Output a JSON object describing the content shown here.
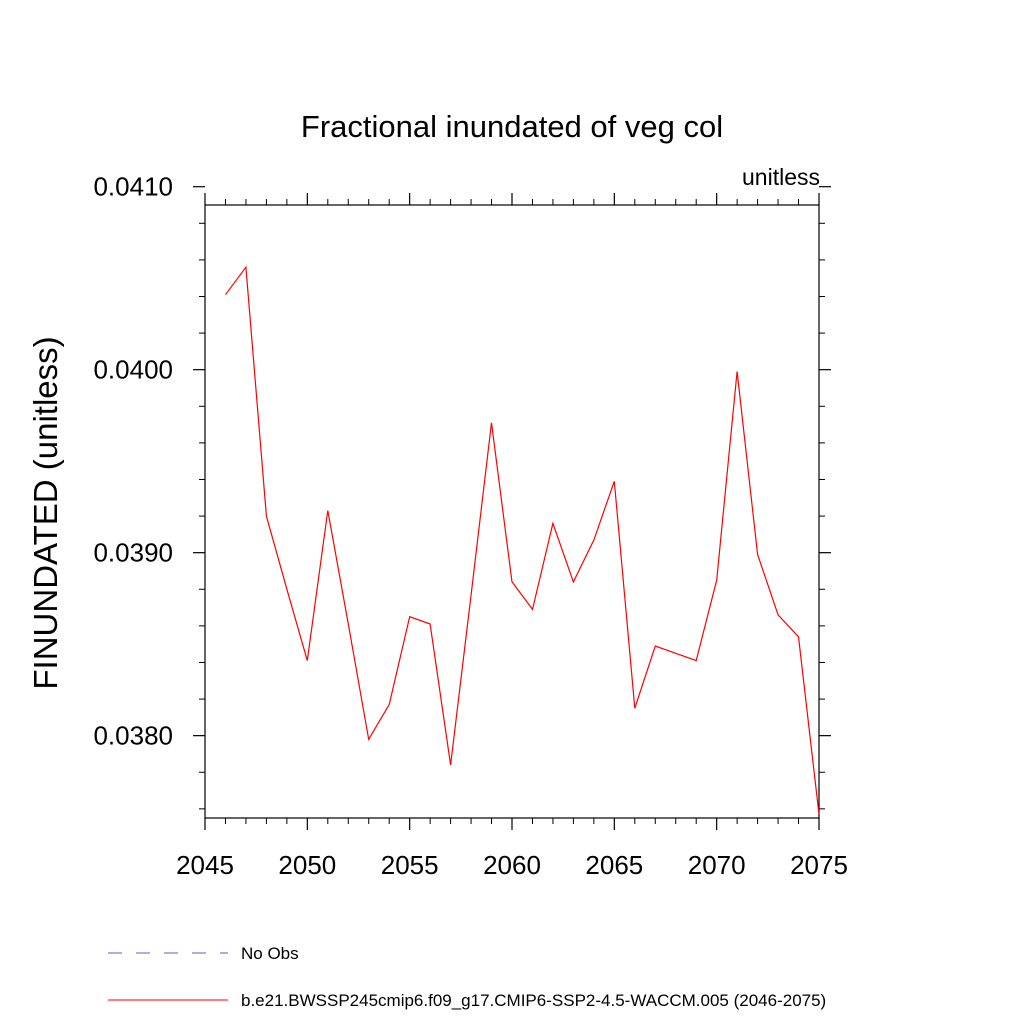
{
  "chart_data": {
    "type": "line",
    "title": "Fractional inundated of veg col",
    "units": "unitless",
    "xlabel": "",
    "ylabel": "FINUNDATED  (unitless)",
    "xlim": [
      2045,
      2075
    ],
    "ylim": [
      0.03755,
      0.0409
    ],
    "xticks": [
      2045,
      2050,
      2055,
      2060,
      2065,
      2070,
      2075
    ],
    "xtick_labels": [
      "2045",
      "2050",
      "2055",
      "2060",
      "2065",
      "2070",
      "2075"
    ],
    "yticks": [
      0.038,
      0.039,
      0.04,
      0.041
    ],
    "ytick_labels": [
      "0.0380",
      "0.0390",
      "0.0400",
      "0.0410"
    ],
    "series": [
      {
        "name": "b.e21.BWSSP245cmip6.f09_g17.CMIP6-SSP2-4.5-WACCM.005 (2046-2075)",
        "color": "#ff0000",
        "dash": "solid",
        "x": [
          2046,
          2047,
          2048,
          2049,
          2050,
          2051,
          2052,
          2053,
          2054,
          2055,
          2056,
          2057,
          2058,
          2059,
          2060,
          2061,
          2062,
          2063,
          2064,
          2065,
          2066,
          2067,
          2068,
          2069,
          2070,
          2071,
          2072,
          2073,
          2074,
          2075
        ],
        "values": [
          0.04041,
          0.04056,
          0.0392,
          0.0388,
          0.03841,
          0.03923,
          0.03861,
          0.03798,
          0.03817,
          0.03865,
          0.03861,
          0.03784,
          0.03877,
          0.03971,
          0.03884,
          0.03869,
          0.03916,
          0.03884,
          0.03907,
          0.03939,
          0.03815,
          0.03849,
          0.03845,
          0.03841,
          0.03885,
          0.03999,
          0.03899,
          0.03866,
          0.03854,
          0.03757
        ]
      }
    ],
    "legend": [
      {
        "label": "No Obs",
        "color": "#6a5acd",
        "dash": "dashed"
      },
      {
        "label": "b.e21.BWSSP245cmip6.f09_g17.CMIP6-SSP2-4.5-WACCM.005 (2046-2075)",
        "color": "#ff0000",
        "dash": "solid"
      }
    ],
    "legend_position": "bottom-left",
    "grid": false
  }
}
